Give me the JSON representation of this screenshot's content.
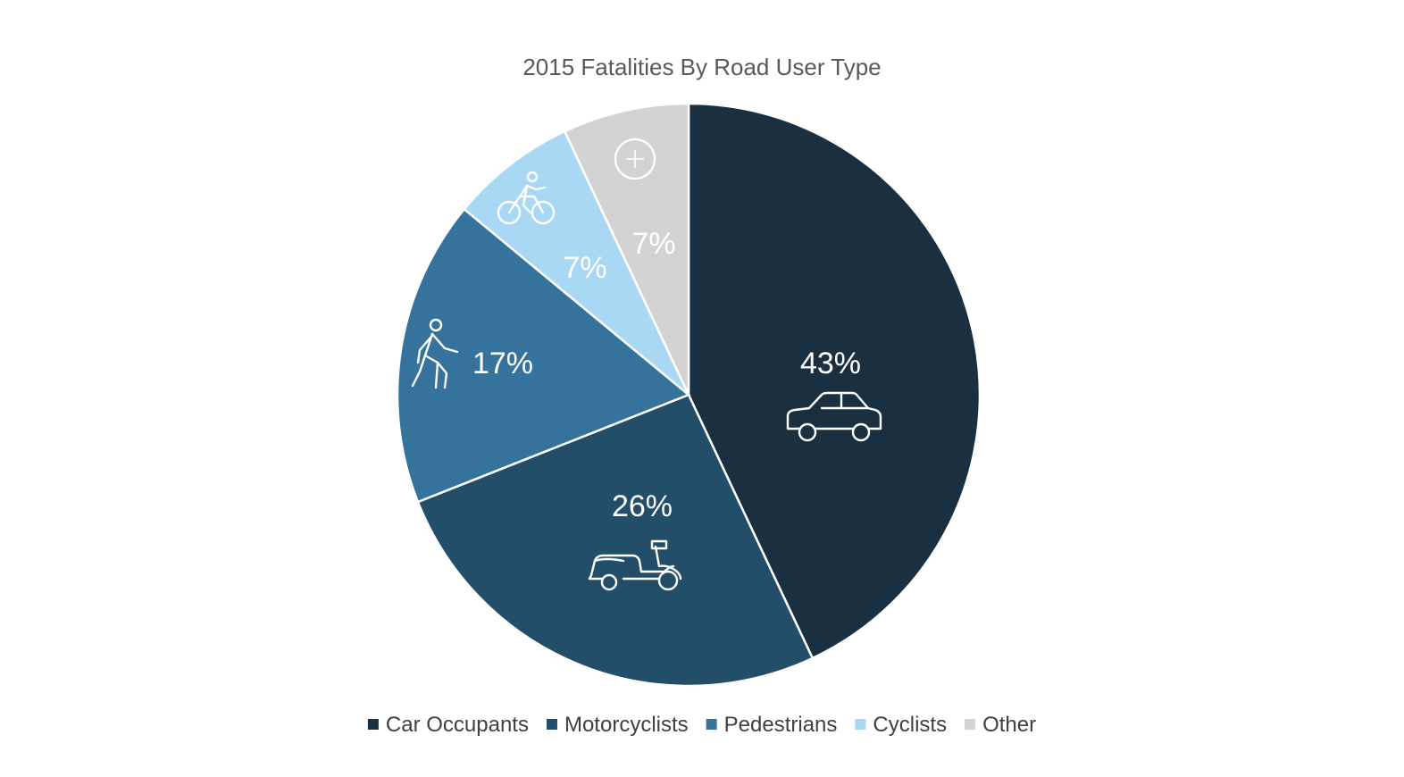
{
  "chart_data": {
    "type": "pie",
    "title": "2015 Fatalities By Road User Type",
    "slices": [
      {
        "label": "Car Occupants",
        "value": 43,
        "display": "43%",
        "color": "#1a3040",
        "icon": "car-icon"
      },
      {
        "label": "Motorcyclists",
        "value": 26,
        "display": "26%",
        "color": "#234e69",
        "icon": "scooter-icon"
      },
      {
        "label": "Pedestrians",
        "value": 17,
        "display": "17%",
        "color": "#35739d",
        "icon": "pedestrian-icon"
      },
      {
        "label": "Cyclists",
        "value": 7,
        "display": "7%",
        "color": "#a8d8f4",
        "icon": "bicycle-icon"
      },
      {
        "label": "Other",
        "value": 7,
        "display": "7%",
        "color": "#d3d3d3",
        "icon": "plus-circle-icon"
      }
    ],
    "start_angle": "12 o'clock",
    "direction": "clockwise",
    "legend_position": "bottom"
  }
}
